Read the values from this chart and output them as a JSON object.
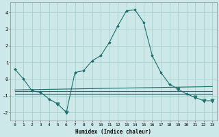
{
  "xlabel": "Humidex (Indice chaleur)",
  "bg_color": "#cce8e8",
  "grid_color": "#aad0d0",
  "line_color": "#1a6e6a",
  "x_values": [
    0,
    1,
    2,
    3,
    4,
    5,
    6,
    7,
    8,
    9,
    10,
    11,
    12,
    13,
    14,
    15,
    16,
    17,
    18,
    19,
    20,
    21,
    22,
    23
  ],
  "main_line": [
    0.6,
    0.0,
    -0.7,
    -0.8,
    -1.2,
    -1.5,
    -2.0,
    0.4,
    0.5,
    1.1,
    1.4,
    2.2,
    3.2,
    4.1,
    4.15,
    3.4,
    1.4,
    0.4,
    -0.3,
    -0.6,
    -0.9,
    -1.1,
    -1.3,
    -1.3
  ],
  "flat_line1": [
    -0.72,
    -0.72
  ],
  "flat_line1_x": [
    0,
    23
  ],
  "flat_line2": [
    -0.88,
    -0.88
  ],
  "flat_line2_x": [
    0,
    23
  ],
  "diagonal_line_x": [
    0,
    23
  ],
  "diagonal_line_y": [
    -0.65,
    -0.45
  ],
  "ylim": [
    -2.5,
    4.6
  ],
  "xlim": [
    -0.5,
    23.5
  ],
  "yticks": [
    -2,
    -1,
    0,
    1,
    2,
    3,
    4
  ],
  "xticks": [
    0,
    1,
    2,
    3,
    4,
    5,
    6,
    7,
    8,
    9,
    10,
    11,
    12,
    13,
    14,
    15,
    16,
    17,
    18,
    19,
    20,
    21,
    22,
    23
  ],
  "triangle_down_x": [
    5,
    6,
    19,
    21,
    22,
    23
  ],
  "triangle_down_y": [
    -1.5,
    -2.0,
    -0.6,
    -1.1,
    -1.3,
    -1.3
  ]
}
